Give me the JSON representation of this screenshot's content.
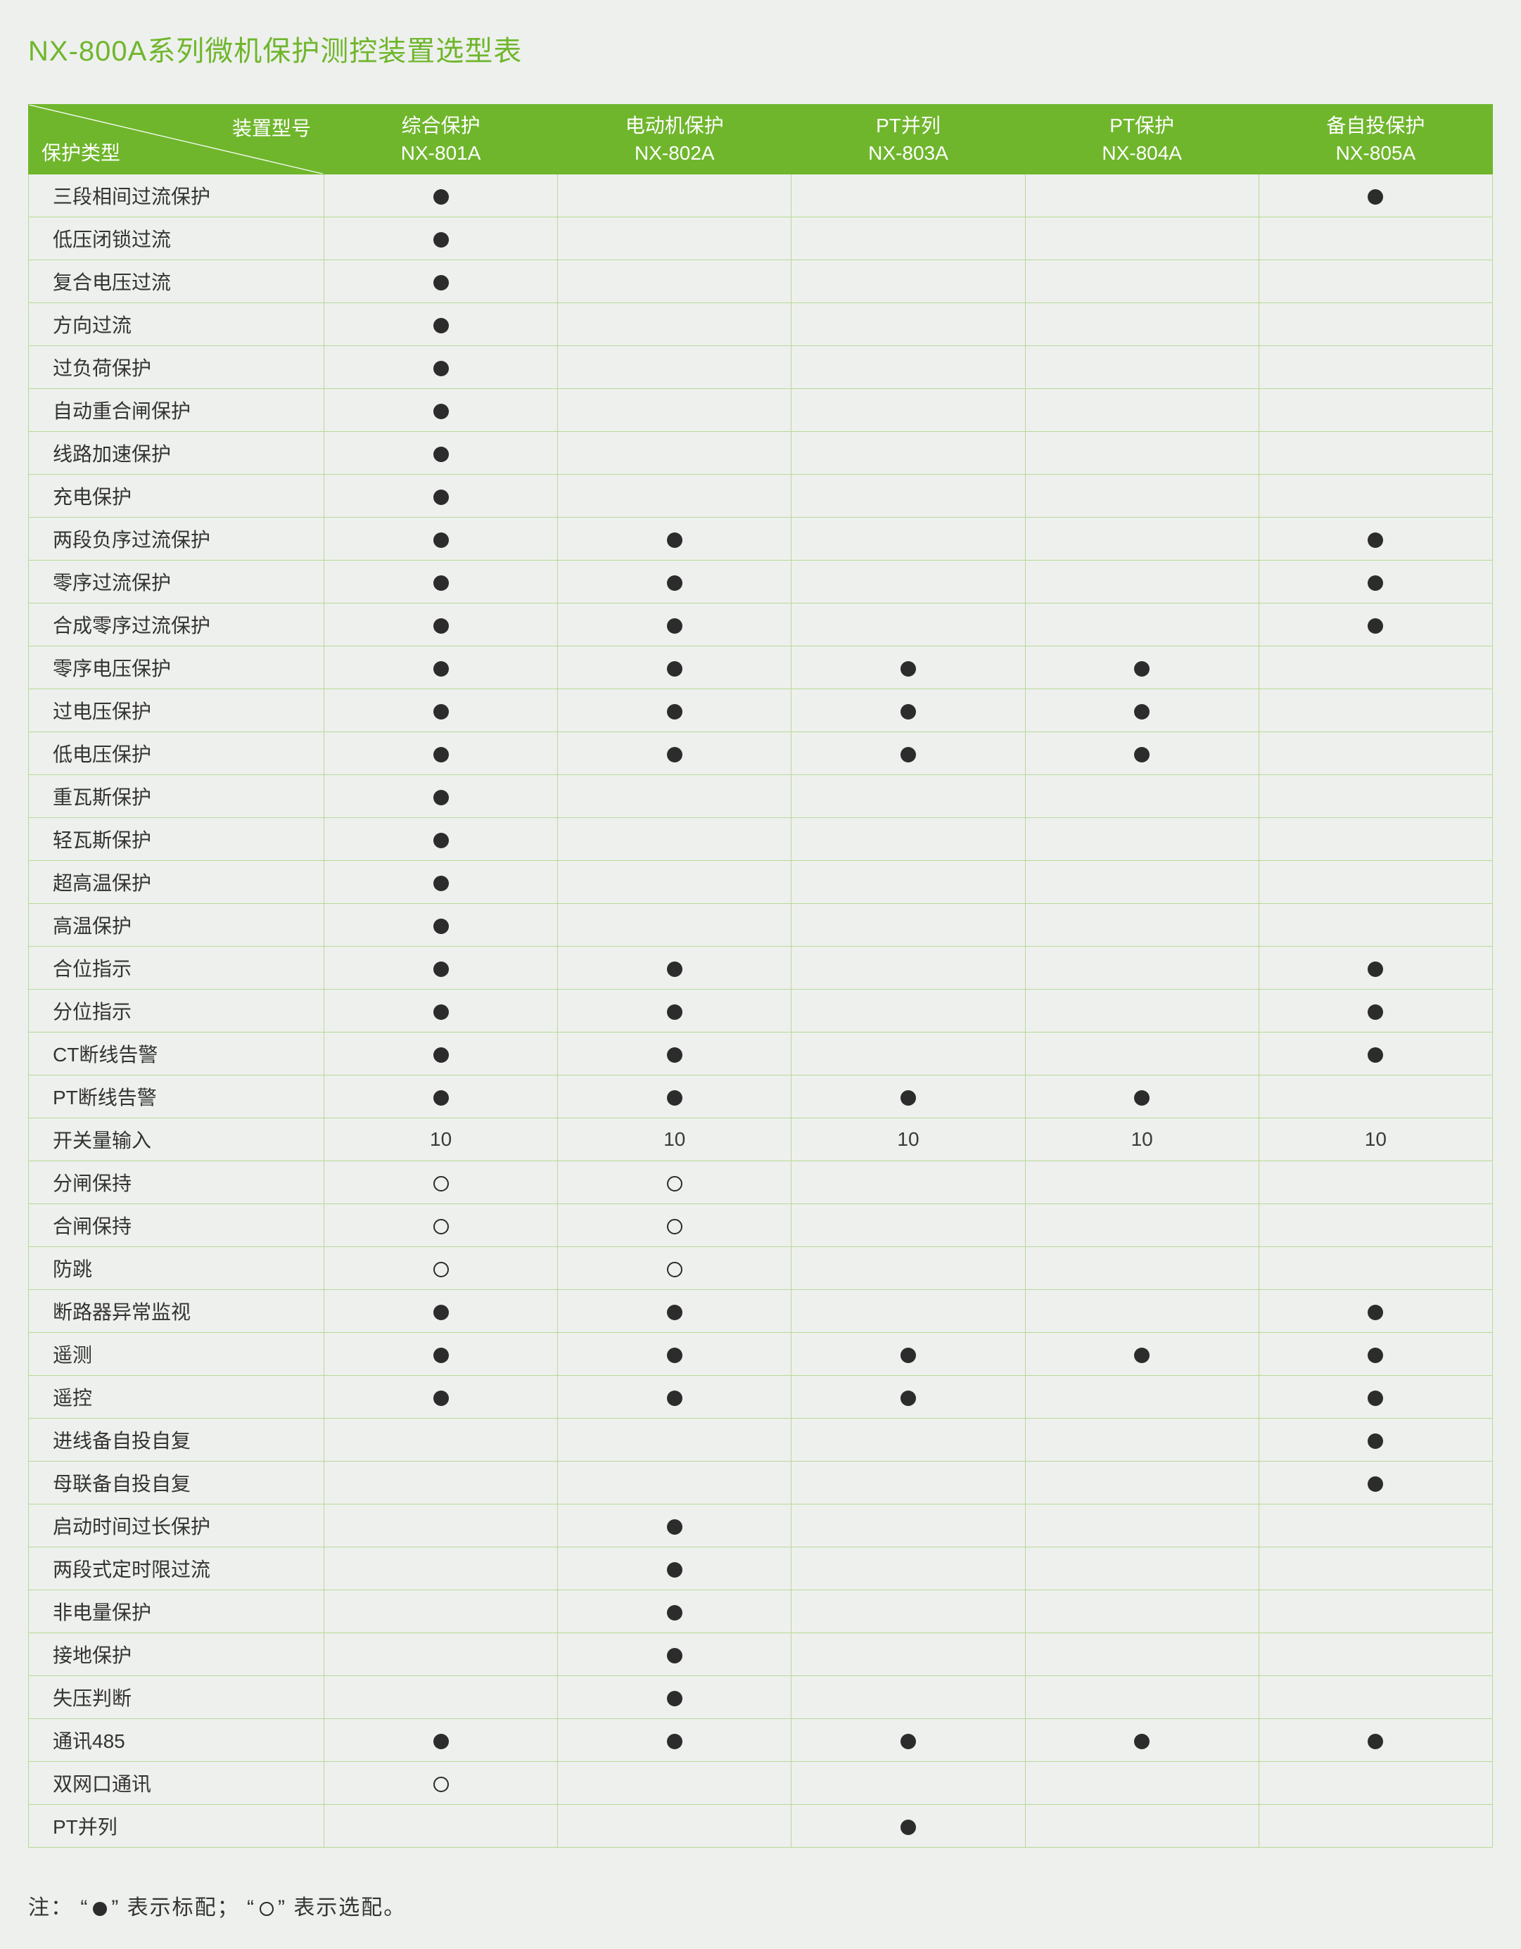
{
  "title": "NX-800A系列微机保护测控装置选型表",
  "header": {
    "diag_top": "装置型号",
    "diag_bottom": "保护类型",
    "columns": [
      {
        "line1": "综合保护",
        "line2": "NX-801A"
      },
      {
        "line1": "电动机保护",
        "line2": "NX-802A"
      },
      {
        "line1": "PT并列",
        "line2": "NX-803A"
      },
      {
        "line1": "PT保护",
        "line2": "NX-804A"
      },
      {
        "line1": "备自投保护",
        "line2": "NX-805A"
      }
    ]
  },
  "legend_label": "注：",
  "legend_std": "表示标配；",
  "legend_opt": "表示选配。",
  "symbols": {
    "filled": "dot",
    "hollow": "circ",
    "text": "text",
    "empty": ""
  },
  "rows": [
    {
      "label": "三段相间过流保护",
      "cells": [
        "dot",
        "",
        "",
        "",
        "dot"
      ]
    },
    {
      "label": "低压闭锁过流",
      "cells": [
        "dot",
        "",
        "",
        "",
        ""
      ]
    },
    {
      "label": "复合电压过流",
      "cells": [
        "dot",
        "",
        "",
        "",
        ""
      ]
    },
    {
      "label": "方向过流",
      "cells": [
        "dot",
        "",
        "",
        "",
        ""
      ]
    },
    {
      "label": "过负荷保护",
      "cells": [
        "dot",
        "",
        "",
        "",
        ""
      ]
    },
    {
      "label": "自动重合闸保护",
      "cells": [
        "dot",
        "",
        "",
        "",
        ""
      ]
    },
    {
      "label": "线路加速保护",
      "cells": [
        "dot",
        "",
        "",
        "",
        ""
      ]
    },
    {
      "label": "充电保护",
      "cells": [
        "dot",
        "",
        "",
        "",
        ""
      ]
    },
    {
      "label": "两段负序过流保护",
      "cells": [
        "dot",
        "dot",
        "",
        "",
        "dot"
      ]
    },
    {
      "label": "零序过流保护",
      "cells": [
        "dot",
        "dot",
        "",
        "",
        "dot"
      ]
    },
    {
      "label": "合成零序过流保护",
      "cells": [
        "dot",
        "dot",
        "",
        "",
        "dot"
      ]
    },
    {
      "label": "零序电压保护",
      "cells": [
        "dot",
        "dot",
        "dot",
        "dot",
        ""
      ]
    },
    {
      "label": "过电压保护",
      "cells": [
        "dot",
        "dot",
        "dot",
        "dot",
        ""
      ]
    },
    {
      "label": "低电压保护",
      "cells": [
        "dot",
        "dot",
        "dot",
        "dot",
        ""
      ]
    },
    {
      "label": "重瓦斯保护",
      "cells": [
        "dot",
        "",
        "",
        "",
        ""
      ]
    },
    {
      "label": "轻瓦斯保护",
      "cells": [
        "dot",
        "",
        "",
        "",
        ""
      ]
    },
    {
      "label": "超高温保护",
      "cells": [
        "dot",
        "",
        "",
        "",
        ""
      ]
    },
    {
      "label": "高温保护",
      "cells": [
        "dot",
        "",
        "",
        "",
        ""
      ]
    },
    {
      "label": "合位指示",
      "cells": [
        "dot",
        "dot",
        "",
        "",
        "dot"
      ]
    },
    {
      "label": "分位指示",
      "cells": [
        "dot",
        "dot",
        "",
        "",
        "dot"
      ]
    },
    {
      "label": "CT断线告警",
      "cells": [
        "dot",
        "dot",
        "",
        "",
        "dot"
      ]
    },
    {
      "label": "PT断线告警",
      "cells": [
        "dot",
        "dot",
        "dot",
        "dot",
        ""
      ]
    },
    {
      "label": "开关量输入",
      "cells": [
        "10",
        "10",
        "10",
        "10",
        "10"
      ]
    },
    {
      "label": "分闸保持",
      "cells": [
        "circ",
        "circ",
        "",
        "",
        ""
      ]
    },
    {
      "label": "合闸保持",
      "cells": [
        "circ",
        "circ",
        "",
        "",
        ""
      ]
    },
    {
      "label": "防跳",
      "cells": [
        "circ",
        "circ",
        "",
        "",
        ""
      ]
    },
    {
      "label": "断路器异常监视",
      "cells": [
        "dot",
        "dot",
        "",
        "",
        "dot"
      ]
    },
    {
      "label": "遥测",
      "cells": [
        "dot",
        "dot",
        "dot",
        "dot",
        "dot"
      ]
    },
    {
      "label": "遥控",
      "cells": [
        "dot",
        "dot",
        "dot",
        "",
        "dot"
      ]
    },
    {
      "label": "进线备自投自复",
      "cells": [
        "",
        "",
        "",
        "",
        "dot"
      ]
    },
    {
      "label": "母联备自投自复",
      "cells": [
        "",
        "",
        "",
        "",
        "dot"
      ]
    },
    {
      "label": "启动时间过长保护",
      "cells": [
        "",
        "dot",
        "",
        "",
        ""
      ]
    },
    {
      "label": "两段式定时限过流",
      "cells": [
        "",
        "dot",
        "",
        "",
        ""
      ]
    },
    {
      "label": "非电量保护",
      "cells": [
        "",
        "dot",
        "",
        "",
        ""
      ]
    },
    {
      "label": "接地保护",
      "cells": [
        "",
        "dot",
        "",
        "",
        ""
      ]
    },
    {
      "label": "失压判断",
      "cells": [
        "",
        "dot",
        "",
        "",
        ""
      ]
    },
    {
      "label": "通讯485",
      "cells": [
        "dot",
        "dot",
        "dot",
        "dot",
        "dot"
      ]
    },
    {
      "label": "双网口通讯",
      "cells": [
        "circ",
        "",
        "",
        "",
        ""
      ]
    },
    {
      "label": "PT并列",
      "cells": [
        "",
        "",
        "dot",
        "",
        ""
      ]
    }
  ]
}
